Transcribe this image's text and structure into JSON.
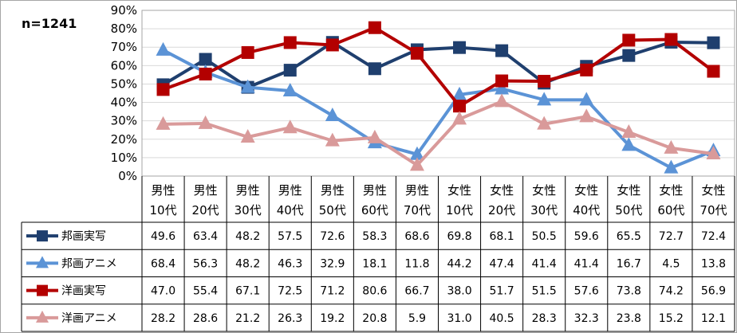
{
  "n_label": "n=1241",
  "colors": {
    "domestic_live": "#1f3f6e",
    "domestic_anime": "#5b93d6",
    "foreign_live": "#b30000",
    "foreign_anime": "#d99a9a"
  },
  "chart_data": {
    "type": "line",
    "categories": [
      [
        "男性",
        "10代"
      ],
      [
        "男性",
        "20代"
      ],
      [
        "男性",
        "30代"
      ],
      [
        "男性",
        "40代"
      ],
      [
        "男性",
        "50代"
      ],
      [
        "男性",
        "60代"
      ],
      [
        "男性",
        "70代"
      ],
      [
        "女性",
        "10代"
      ],
      [
        "女性",
        "20代"
      ],
      [
        "女性",
        "30代"
      ],
      [
        "女性",
        "40代"
      ],
      [
        "女性",
        "50代"
      ],
      [
        "女性",
        "60代"
      ],
      [
        "女性",
        "70代"
      ]
    ],
    "yticks": [
      "0%",
      "10%",
      "20%",
      "30%",
      "40%",
      "50%",
      "60%",
      "70%",
      "80%",
      "90%"
    ],
    "ylim": [
      0,
      90
    ],
    "grid": true,
    "legend": "data-table",
    "series": [
      {
        "name": "邦画実写",
        "marker": "square",
        "color": "#1f3f6e",
        "values": [
          49.6,
          63.4,
          48.2,
          57.5,
          72.6,
          58.3,
          68.6,
          69.8,
          68.1,
          50.5,
          59.6,
          65.5,
          72.7,
          72.4
        ]
      },
      {
        "name": "邦画アニメ",
        "marker": "triangle",
        "color": "#5b93d6",
        "values": [
          68.4,
          56.3,
          48.2,
          46.3,
          32.9,
          18.1,
          11.8,
          44.2,
          47.4,
          41.4,
          41.4,
          16.7,
          4.5,
          13.8
        ]
      },
      {
        "name": "洋画実写",
        "marker": "square",
        "color": "#b30000",
        "values": [
          47.0,
          55.4,
          67.1,
          72.5,
          71.2,
          80.6,
          66.7,
          38.0,
          51.7,
          51.5,
          57.6,
          73.8,
          74.2,
          56.9
        ]
      },
      {
        "name": "洋画アニメ",
        "marker": "triangle",
        "color": "#d99a9a",
        "values": [
          28.2,
          28.6,
          21.2,
          26.3,
          19.2,
          20.8,
          5.9,
          31.0,
          40.5,
          28.3,
          32.3,
          23.8,
          15.2,
          12.1
        ]
      }
    ]
  }
}
